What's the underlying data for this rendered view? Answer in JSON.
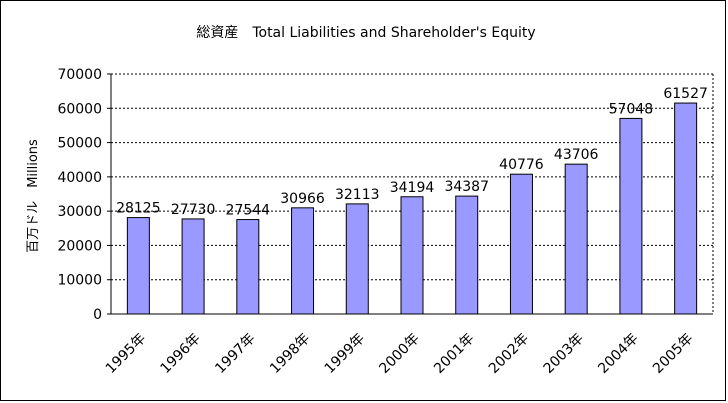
{
  "chart_data": {
    "type": "bar",
    "title": "総資産　Total Liabilities and Shareholder's Equity",
    "ylabel": "百万ドル　Millions",
    "xlabel": "",
    "categories": [
      "1995年",
      "1996年",
      "1997年",
      "1998年",
      "1999年",
      "2000年",
      "2001年",
      "2002年",
      "2003年",
      "2004年",
      "2005年"
    ],
    "values": [
      28125,
      27730,
      27544,
      30966,
      32113,
      34194,
      34387,
      40776,
      43706,
      57048,
      61527
    ],
    "ylim": [
      0,
      70000
    ],
    "yticks": [
      0,
      10000,
      20000,
      30000,
      40000,
      50000,
      60000,
      70000
    ],
    "grid": true,
    "legend": "none",
    "bar_color": "#9999ff",
    "bar_edge_color": "#000000"
  }
}
